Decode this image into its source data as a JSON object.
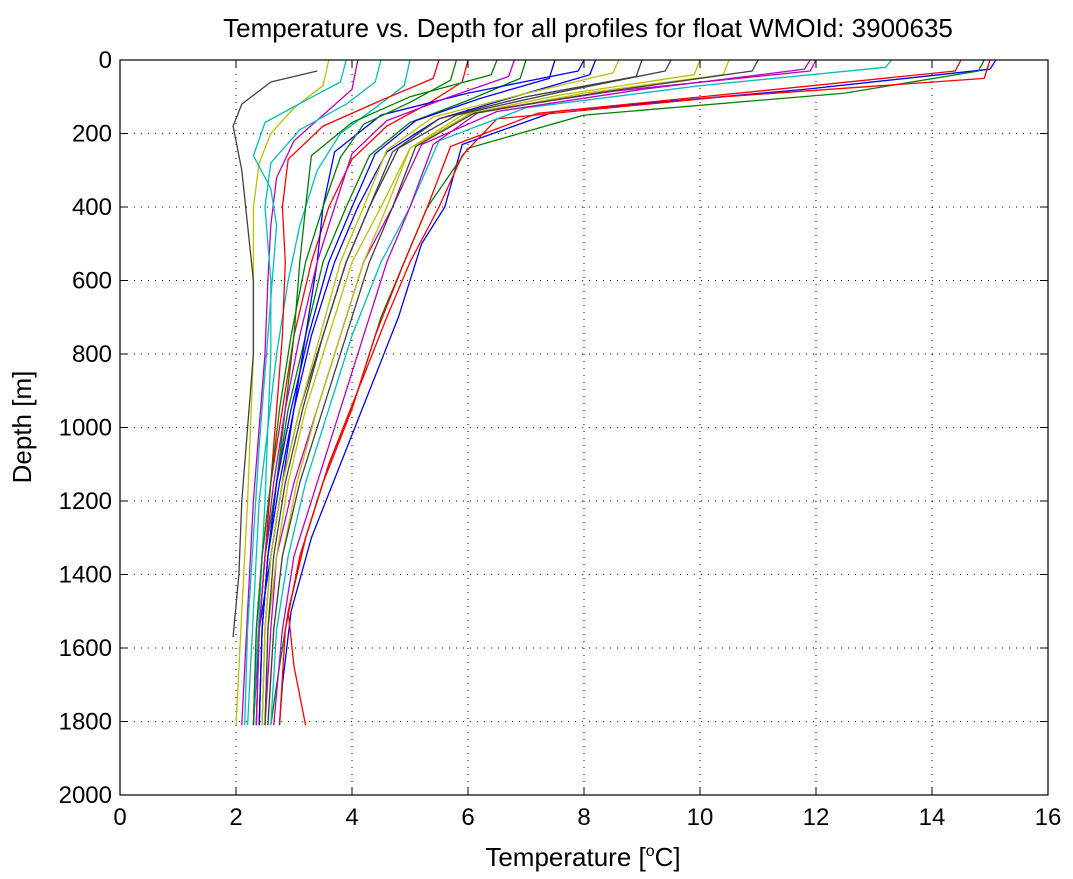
{
  "chart_data": {
    "type": "line",
    "title": "Temperature vs. Depth for all profiles for float WMOId: 3900635",
    "xlabel": {
      "prefix": "Temperature [",
      "superscript": "o",
      "suffix": "C]"
    },
    "ylabel": "Depth [m]",
    "xlim": [
      0,
      16
    ],
    "ylim": [
      0,
      2000
    ],
    "y_reversed": true,
    "grid": true,
    "x_ticks": [
      "0",
      "2",
      "4",
      "6",
      "8",
      "10",
      "12",
      "14",
      "16"
    ],
    "y_ticks": [
      "0",
      "200",
      "400",
      "600",
      "800",
      "1000",
      "1200",
      "1400",
      "1600",
      "1800",
      "2000"
    ],
    "series_colors": [
      "#0000ff",
      "#008000",
      "#ff0000",
      "#00bfbf",
      "#bf00bf",
      "#bfbf00",
      "#404040"
    ],
    "series": [
      {
        "x": [
          15.1,
          15.0,
          11.8,
          7.5,
          5.9,
          5.6,
          5.2,
          4.8,
          4.3,
          3.8,
          3.3,
          2.95,
          2.8,
          2.75
        ],
        "y": [
          0,
          25,
          80,
          140,
          230,
          400,
          500,
          700,
          900,
          1100,
          1300,
          1500,
          1700,
          1810
        ]
      },
      {
        "x": [
          14.9,
          14.8,
          12.5,
          8.0,
          6.0,
          5.3,
          4.9,
          4.5,
          4.1,
          3.6,
          3.2,
          2.9,
          2.7,
          2.6
        ],
        "y": [
          0,
          30,
          90,
          150,
          240,
          400,
          550,
          700,
          900,
          1100,
          1300,
          1500,
          1700,
          1810
        ]
      },
      {
        "x": [
          15.0,
          14.9,
          10.4,
          6.5,
          5.9,
          5.5,
          5.0,
          4.6,
          4.1,
          3.6,
          3.2,
          2.9,
          3.0,
          3.2
        ],
        "y": [
          0,
          50,
          100,
          160,
          260,
          400,
          550,
          700,
          900,
          1100,
          1300,
          1500,
          1650,
          1810
        ]
      },
      {
        "x": [
          13.3,
          13.2,
          10.0,
          7.0,
          5.5,
          5.0,
          4.5,
          4.0,
          3.6,
          3.2,
          2.9,
          2.7,
          2.6
        ],
        "y": [
          0,
          20,
          70,
          130,
          220,
          400,
          550,
          750,
          950,
          1150,
          1350,
          1550,
          1810
        ]
      },
      {
        "x": [
          11.9,
          11.8,
          9.0,
          6.5,
          5.2,
          4.7,
          4.2,
          3.8,
          3.4,
          3.0,
          2.7,
          2.6,
          2.5
        ],
        "y": [
          0,
          25,
          80,
          140,
          230,
          400,
          550,
          750,
          950,
          1150,
          1350,
          1550,
          1810
        ]
      },
      {
        "x": [
          10.5,
          10.4,
          8.0,
          6.0,
          5.0,
          4.5,
          4.0,
          3.6,
          3.2,
          2.9,
          2.7,
          2.55,
          2.5
        ],
        "y": [
          0,
          40,
          90,
          150,
          240,
          400,
          550,
          750,
          950,
          1150,
          1350,
          1550,
          1810
        ]
      },
      {
        "x": [
          9.5,
          9.4,
          7.5,
          5.8,
          4.8,
          4.3,
          3.9,
          3.5,
          3.1,
          2.8,
          2.6,
          2.5,
          2.45
        ],
        "y": [
          0,
          30,
          90,
          150,
          240,
          400,
          550,
          750,
          950,
          1150,
          1350,
          1550,
          1810
        ]
      },
      {
        "x": [
          8.2,
          8.1,
          6.8,
          5.5,
          4.6,
          4.1,
          3.7,
          3.3,
          3.0,
          2.75,
          2.55,
          2.45,
          2.4
        ],
        "y": [
          0,
          40,
          100,
          160,
          250,
          400,
          550,
          750,
          950,
          1150,
          1350,
          1550,
          1810
        ]
      },
      {
        "x": [
          7.0,
          6.9,
          6.0,
          5.0,
          4.3,
          3.9,
          3.5,
          3.2,
          2.9,
          2.7,
          2.5,
          2.4,
          2.35
        ],
        "y": [
          0,
          50,
          110,
          170,
          260,
          400,
          550,
          750,
          950,
          1150,
          1350,
          1550,
          1810
        ]
      },
      {
        "x": [
          6.0,
          5.9,
          5.3,
          4.6,
          4.0,
          3.6,
          3.3,
          3.0,
          2.8,
          2.6,
          2.45,
          2.35,
          2.3
        ],
        "y": [
          0,
          60,
          120,
          180,
          270,
          400,
          550,
          750,
          950,
          1150,
          1350,
          1550,
          1810
        ]
      },
      {
        "x": [
          5.0,
          4.9,
          4.4,
          3.8,
          3.4,
          3.1,
          2.9,
          2.7,
          2.55,
          2.4,
          2.3,
          2.2
        ],
        "y": [
          0,
          70,
          130,
          200,
          300,
          450,
          600,
          800,
          1000,
          1200,
          1500,
          1810
        ]
      },
      {
        "x": [
          4.1,
          4.0,
          3.5,
          3.0,
          2.7,
          2.6,
          2.55,
          2.5,
          2.4,
          2.3,
          2.2,
          2.1
        ],
        "y": [
          0,
          80,
          150,
          220,
          320,
          450,
          600,
          800,
          1000,
          1200,
          1500,
          1810
        ]
      },
      {
        "x": [
          3.6,
          3.5,
          3.0,
          2.6,
          2.4,
          2.3,
          2.3,
          2.3,
          2.25,
          2.2,
          2.1,
          2.0
        ],
        "y": [
          0,
          70,
          130,
          200,
          280,
          400,
          600,
          800,
          1000,
          1200,
          1500,
          1810
        ]
      },
      {
        "x": [
          3.4,
          2.6,
          2.1,
          1.95,
          2.1,
          2.2,
          2.3,
          2.3,
          2.2,
          2.1,
          2.05,
          1.95
        ],
        "y": [
          30,
          60,
          120,
          180,
          300,
          450,
          600,
          800,
          1000,
          1200,
          1400,
          1570
        ]
      },
      {
        "x": [
          8.0,
          7.9,
          6.0,
          4.5,
          3.7,
          3.5,
          3.4,
          3.2,
          3.0,
          2.8,
          2.6,
          2.4,
          2.3
        ],
        "y": [
          0,
          30,
          90,
          150,
          250,
          400,
          550,
          750,
          950,
          1150,
          1350,
          1550,
          1810
        ]
      },
      {
        "x": [
          6.5,
          6.4,
          5.0,
          4.0,
          3.3,
          3.2,
          3.1,
          3.0,
          2.85,
          2.7,
          2.55,
          2.45,
          2.4
        ],
        "y": [
          0,
          40,
          100,
          170,
          260,
          400,
          550,
          750,
          950,
          1150,
          1350,
          1550,
          1810
        ]
      },
      {
        "x": [
          5.5,
          5.4,
          4.5,
          3.5,
          2.9,
          2.8,
          2.85,
          2.8,
          2.7,
          2.6,
          2.5,
          2.4,
          2.35
        ],
        "y": [
          0,
          50,
          110,
          180,
          270,
          400,
          550,
          750,
          950,
          1150,
          1350,
          1550,
          1810
        ]
      },
      {
        "x": [
          4.5,
          4.4,
          3.9,
          3.1,
          2.6,
          2.5,
          2.6,
          2.6,
          2.55,
          2.5,
          2.4,
          2.3
        ],
        "y": [
          0,
          60,
          120,
          190,
          280,
          400,
          600,
          800,
          1000,
          1200,
          1500,
          1810
        ]
      },
      {
        "x": [
          12.0,
          11.9,
          8.5,
          6.2,
          5.4,
          5.0,
          4.6,
          4.2,
          3.8,
          3.4,
          3.0,
          2.8,
          2.65
        ],
        "y": [
          0,
          30,
          85,
          140,
          230,
          400,
          550,
          750,
          950,
          1150,
          1350,
          1550,
          1810
        ]
      },
      {
        "x": [
          10.0,
          9.9,
          7.6,
          5.9,
          5.0,
          4.6,
          4.2,
          3.8,
          3.4,
          3.05,
          2.8,
          2.65,
          2.55
        ],
        "y": [
          0,
          40,
          95,
          150,
          240,
          400,
          550,
          750,
          950,
          1150,
          1350,
          1550,
          1810
        ]
      },
      {
        "x": [
          9.0,
          8.9,
          7.0,
          5.5,
          4.7,
          4.3,
          3.9,
          3.5,
          3.15,
          2.85,
          2.65,
          2.55,
          2.5
        ],
        "y": [
          0,
          45,
          100,
          160,
          250,
          400,
          550,
          750,
          950,
          1150,
          1350,
          1550,
          1810
        ]
      },
      {
        "x": [
          7.5,
          7.4,
          6.2,
          5.1,
          4.4,
          4.0,
          3.6,
          3.25,
          2.95,
          2.7,
          2.55,
          2.45,
          2.4
        ],
        "y": [
          0,
          50,
          105,
          165,
          255,
          400,
          550,
          750,
          950,
          1150,
          1350,
          1550,
          1810
        ]
      },
      {
        "x": [
          5.8,
          5.7,
          5.0,
          4.2,
          3.8,
          3.5,
          3.2,
          2.95,
          2.75,
          2.6,
          2.45,
          2.35,
          2.3
        ],
        "y": [
          0,
          55,
          115,
          175,
          265,
          400,
          550,
          750,
          950,
          1150,
          1350,
          1550,
          1810
        ]
      },
      {
        "x": [
          14.5,
          14.4,
          11.0,
          7.2,
          5.7,
          5.3,
          4.9,
          4.4,
          4.0,
          3.5,
          3.1,
          2.85,
          2.75
        ],
        "y": [
          0,
          30,
          85,
          145,
          235,
          400,
          550,
          750,
          950,
          1150,
          1350,
          1550,
          1810
        ]
      },
      {
        "x": [
          3.9,
          3.8,
          3.2,
          2.5,
          2.3,
          2.6,
          2.7,
          2.6,
          2.5,
          2.4,
          2.3,
          2.2,
          2.15
        ],
        "y": [
          0,
          60,
          110,
          170,
          260,
          350,
          450,
          650,
          850,
          1050,
          1300,
          1550,
          1810
        ]
      },
      {
        "x": [
          6.8,
          6.7,
          5.6,
          4.6,
          4.0,
          3.7,
          3.4,
          3.1,
          2.85,
          2.65,
          2.5,
          2.4,
          2.35
        ],
        "y": [
          0,
          45,
          105,
          165,
          255,
          400,
          550,
          750,
          950,
          1150,
          1350,
          1550,
          1810
        ]
      },
      {
        "x": [
          8.6,
          8.5,
          6.9,
          5.4,
          4.6,
          4.2,
          3.8,
          3.45,
          3.1,
          2.8,
          2.6,
          2.5,
          2.45
        ],
        "y": [
          0,
          35,
          95,
          155,
          245,
          400,
          550,
          750,
          950,
          1150,
          1350,
          1550,
          1810
        ]
      },
      {
        "x": [
          11.0,
          10.9,
          8.2,
          6.1,
          5.1,
          4.7,
          4.3,
          3.9,
          3.5,
          3.1,
          2.8,
          2.65,
          2.55
        ],
        "y": [
          0,
          30,
          90,
          145,
          235,
          400,
          550,
          750,
          950,
          1150,
          1350,
          1550,
          1810
        ]
      }
    ]
  }
}
